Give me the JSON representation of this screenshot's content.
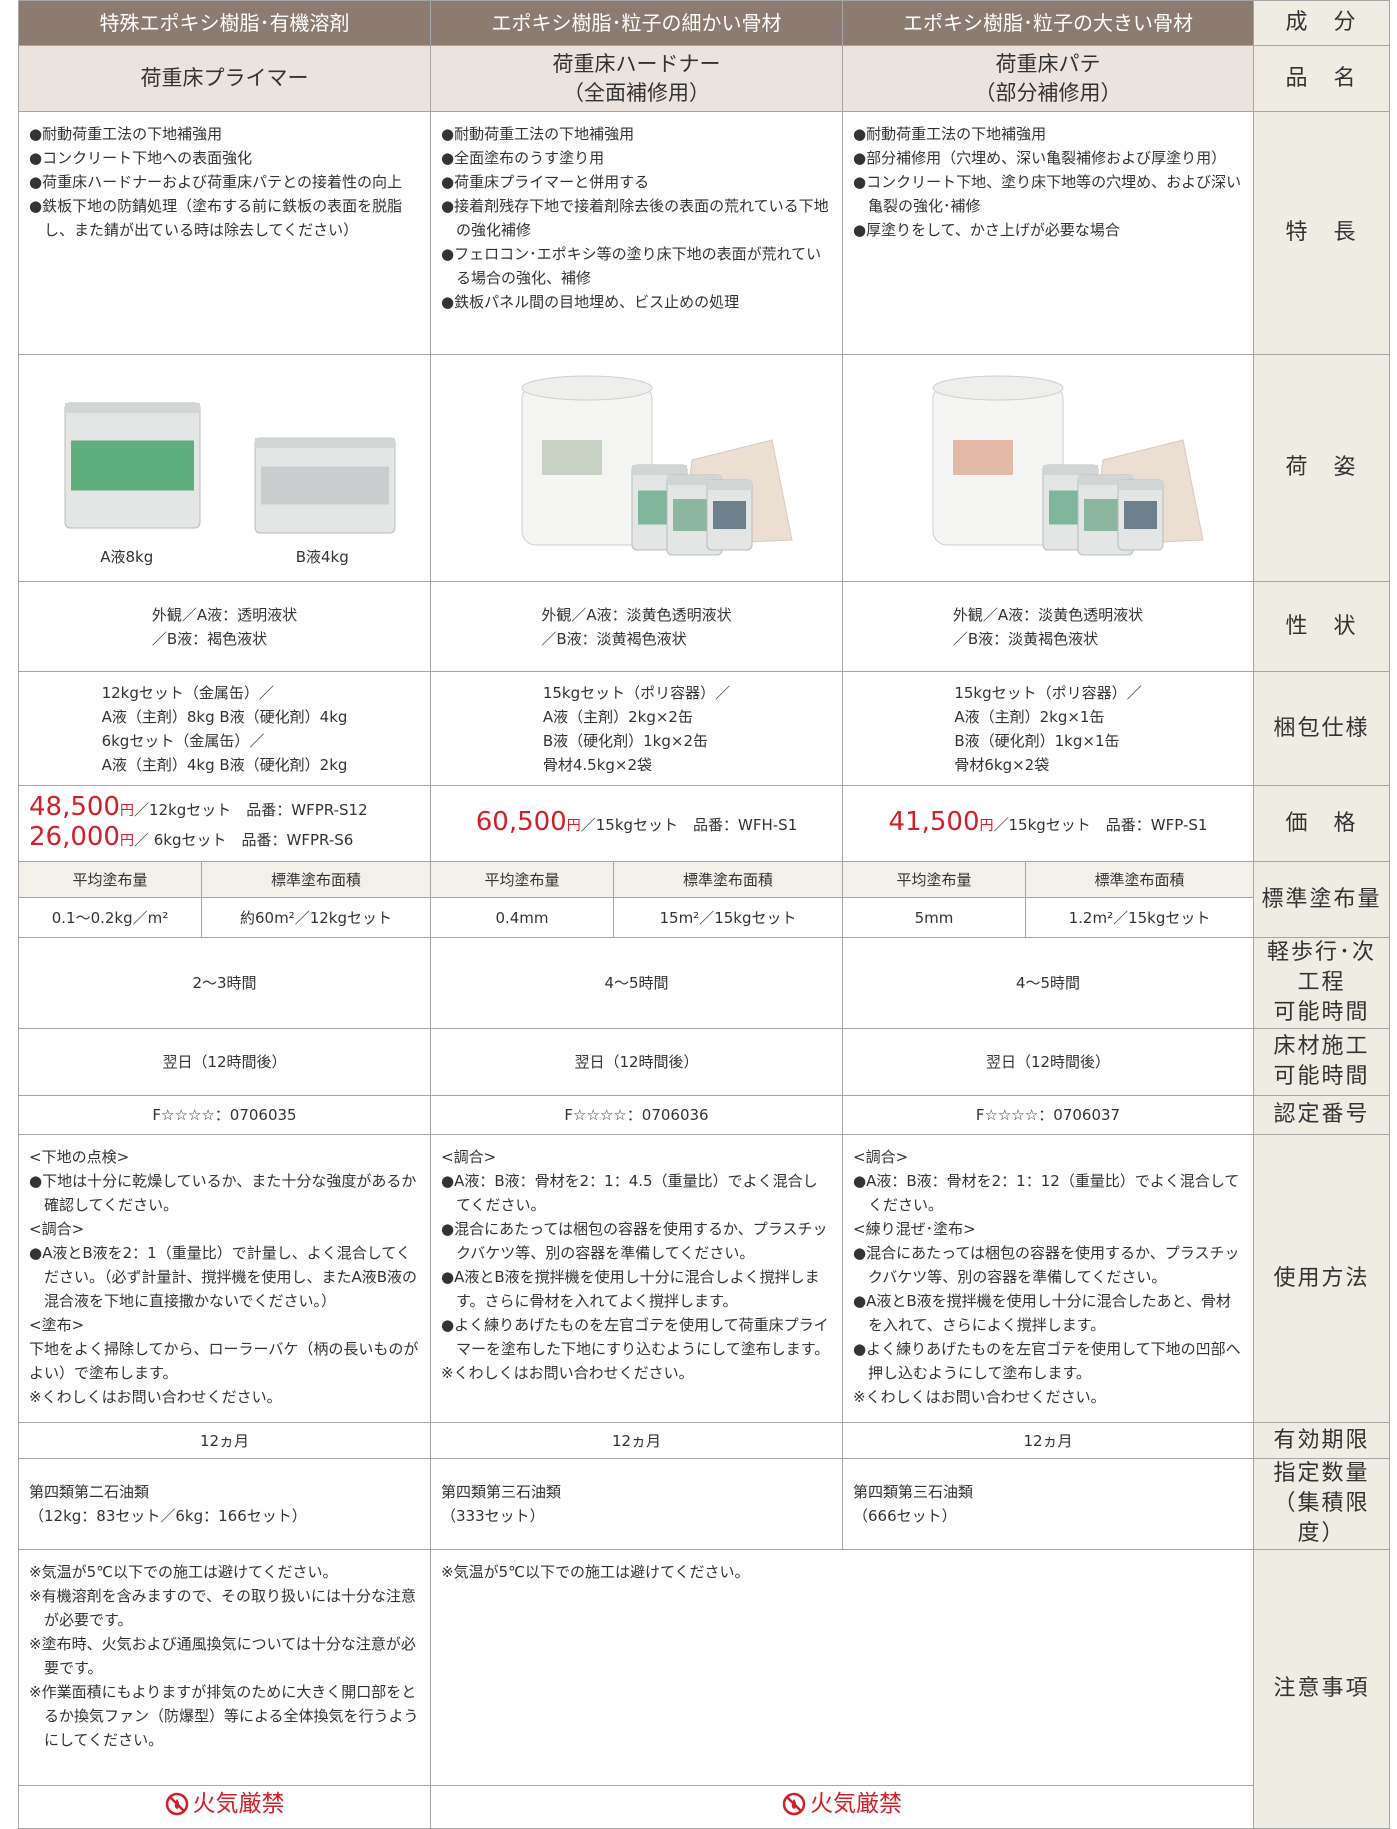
{
  "header": {
    "components": [
      "特殊エポキシ樹脂･有機溶剤",
      "エポキシ樹脂･粒子の細かい骨材",
      "エポキシ樹脂･粒子の大きい骨材"
    ],
    "label": "成　分"
  },
  "names": {
    "cells": [
      [
        "荷重床プライマー"
      ],
      [
        "荷重床ハードナー",
        "（全面補修用）"
      ],
      [
        "荷重床パテ",
        "（部分補修用）"
      ]
    ],
    "label": "品　名"
  },
  "features": {
    "cells": [
      [
        "●耐動荷重工法の下地補強用",
        "●コンクリート下地への表面強化",
        "●荷重床ハードナーおよび荷重床パテとの接着性の向上",
        "●鉄板下地の防錆処理（塗布する前に鉄板の表面を脱脂し、また錆が出ている時は除去してください）"
      ],
      [
        "●耐動荷重工法の下地補強用",
        "●全面塗布のうす塗り用",
        "●荷重床プライマーと併用する",
        "●接着剤残存下地で接着剤除去後の表面の荒れている下地の強化補修",
        "●フェロコン･エポキシ等の塗り床下地の表面が荒れている場合の強化、補修",
        "●鉄板パネル間の目地埋め、ビス止めの処理"
      ],
      [
        "●耐動荷重工法の下地補強用",
        "●部分補修用（穴埋め、深い亀裂補修および厚塗り用）",
        "●コンクリート下地、塗り床下地等の穴埋め、および深い亀裂の強化･補修",
        "●厚塗りをして、かさ上げが必要な場合"
      ]
    ],
    "label": "特　長"
  },
  "packaging_image": {
    "captions": [
      "A液8kg",
      "B液4kg"
    ],
    "label": "荷　姿"
  },
  "properties": {
    "cells": [
      [
        "外観／A液：透明液状",
        "／B液：褐色液状"
      ],
      [
        "外観／A液：淡黄色透明液状",
        "／B液：淡黄褐色液状"
      ],
      [
        "外観／A液：淡黄色透明液状",
        "／B液：淡黄褐色液状"
      ]
    ],
    "label": "性　状"
  },
  "packaging": {
    "cells": [
      [
        "12kgセット（金属缶）／",
        "A液（主剤）8kg B液（硬化剤）4kg",
        "6kgセット（金属缶）／",
        "A液（主剤）4kg B液（硬化剤）2kg"
      ],
      [
        "15kgセット（ポリ容器）／",
        "A液（主剤）2kg×2缶",
        "B液（硬化剤）1kg×2缶",
        "骨材4.5kg×2袋"
      ],
      [
        "15kgセット（ポリ容器）／",
        "A液（主剤）2kg×1缶",
        "B液（硬化剤）1kg×1缶",
        "骨材6kg×2袋"
      ]
    ],
    "label": "梱包仕様"
  },
  "prices": {
    "cells": [
      [
        {
          "price": "48,500",
          "yen": "円",
          "detail": "／12kgセット　品番：WFPR-S12"
        },
        {
          "price": "26,000",
          "yen": "円",
          "detail": "／ 6kgセット　品番：WFPR-S6"
        }
      ],
      [
        {
          "price": "60,500",
          "yen": "円",
          "detail": "／15kgセット　品番：WFH-S1"
        }
      ],
      [
        {
          "price": "41,500",
          "yen": "円",
          "detail": "／15kgセット　品番：WFP-S1"
        }
      ]
    ],
    "label": "価　格"
  },
  "coverage": {
    "headers": [
      [
        "平均塗布量",
        "標準塗布面積"
      ],
      [
        "平均塗布量",
        "標準塗布面積"
      ],
      [
        "平均塗布量",
        "標準塗布面積"
      ]
    ],
    "values": [
      [
        "0.1～0.2kg／m²",
        "約60m²／12kgセット"
      ],
      [
        "0.4mm",
        "15m²／15kgセット"
      ],
      [
        "5mm",
        "1.2m²／15kgセット"
      ]
    ],
    "label": "標準塗布量"
  },
  "walk_time": {
    "cells": [
      "2～3時間",
      "4～5時間",
      "4～5時間"
    ],
    "label": [
      "軽歩行･次工程",
      "可能時間"
    ]
  },
  "floor_time": {
    "cells": [
      "翌日（12時間後）",
      "翌日（12時間後）",
      "翌日（12時間後）"
    ],
    "label": [
      "床材施工",
      "可能時間"
    ]
  },
  "certification": {
    "cells": [
      "F☆☆☆☆：0706035",
      "F☆☆☆☆：0706036",
      "F☆☆☆☆：0706037"
    ],
    "label": "認定番号"
  },
  "usage": {
    "cells": [
      [
        "<下地の点検>",
        "●下地は十分に乾燥しているか、また十分な強度があるか確認してください。",
        "<調合>",
        "●A液とB液を2：1（重量比）で計量し、よく混合してください。（必ず計量計、撹拌機を使用し、またA液B液の混合液を下地に直接撒かないでください。）",
        "<塗布>",
        "下地をよく掃除してから、ローラーバケ（柄の長いものがよい）で塗布します。",
        "※くわしくはお問い合わせください。"
      ],
      [
        "<調合>",
        "●A液：B液：骨材を2：1：4.5（重量比）でよく混合してください。",
        "●混合にあたっては梱包の容器を使用するか、プラスチックバケツ等、別の容器を準備してください。",
        "●A液とB液を撹拌機を使用し十分に混合しよく撹拌します。さらに骨材を入れてよく撹拌します。",
        "●よく練りあげたものを左官ゴテを使用して荷重床プライマーを塗布した下地にすり込むようにして塗布します。",
        "※くわしくはお問い合わせください。"
      ],
      [
        "<調合>",
        "●A液：B液：骨材を2：1：12（重量比）でよく混合してください。",
        "<練り混ぜ･塗布>",
        "●混合にあたっては梱包の容器を使用するか、プラスチックバケツ等、別の容器を準備してください。",
        "●A液とB液を撹拌機を使用し十分に混合したあと、骨材を入れて、さらによく撹拌します。",
        "●よく練りあげたものを左官ゴテを使用して下地の凹部へ押し込むようにして塗布します。",
        "※くわしくはお問い合わせください。"
      ]
    ],
    "label": "使用方法"
  },
  "expiry": {
    "cells": [
      "12ヵ月",
      "12ヵ月",
      "12ヵ月"
    ],
    "label": "有効期限"
  },
  "quantity": {
    "cells": [
      [
        "第四類第二石油類",
        "（12kg：83セット／6kg：166セット）"
      ],
      [
        "第四類第三石油類",
        "（333セット）"
      ],
      [
        "第四類第三石油類",
        "（666セット）"
      ]
    ],
    "label": [
      "指定数量",
      "（集積限度）"
    ]
  },
  "notes": {
    "cells": [
      [
        "※気温が5℃以下での施工は避けてください。",
        "※有機溶剤を含みますので、その取り扱いには十分な注意が必要です。",
        "※塗布時、火気および通風換気については十分な注意が必要です。",
        "※作業面積にもよりますが排気のために大きく開口部をとるか換気ファン（防爆型）等による全体換気を行うようにしてください。"
      ],
      [
        "※気温が5℃以下での施工は避けてください。"
      ]
    ],
    "label": "注意事項"
  },
  "fire_warning": [
    "火気厳禁",
    "火気厳禁"
  ]
}
